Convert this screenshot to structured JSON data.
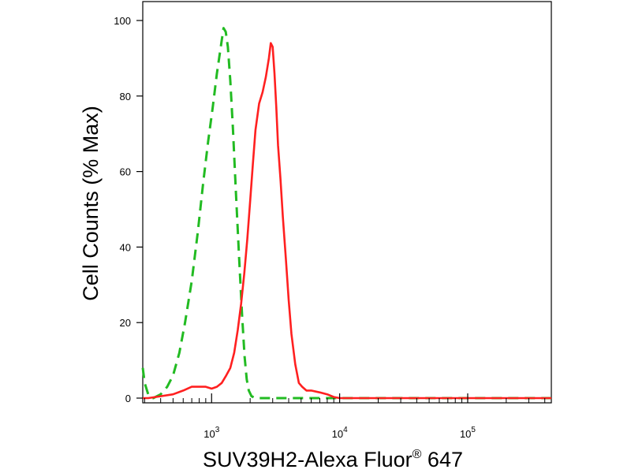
{
  "chart_data": {
    "type": "line",
    "title": "",
    "xlabel": "SUV39H2-Alexa Fluor",
    "xlabel_superscript": "®",
    "xlabel_suffix": " 647",
    "ylabel": "Cell Counts (% Max)",
    "x_scale": "log",
    "xlim": [
      290,
      450000
    ],
    "ylim": [
      0,
      100
    ],
    "grid": false,
    "legend": "none",
    "x_ticks": [
      {
        "base": "10",
        "exp": "3",
        "value": 1000
      },
      {
        "base": "10",
        "exp": "4",
        "value": 10000
      },
      {
        "base": "10",
        "exp": "5",
        "value": 100000
      }
    ],
    "y_ticks": [
      {
        "label": "0",
        "value": 0
      },
      {
        "label": "20",
        "value": 20
      },
      {
        "label": "40",
        "value": 40
      },
      {
        "label": "60",
        "value": 60
      },
      {
        "label": "80",
        "value": 80
      },
      {
        "label": "100",
        "value": 100
      }
    ],
    "series": [
      {
        "color": "#22bb22",
        "style": "dashed",
        "x": [
          290,
          300,
          320,
          350,
          400,
          450,
          500,
          560,
          620,
          700,
          780,
          860,
          940,
          1020,
          1100,
          1180,
          1240,
          1290,
          1340,
          1400,
          1470,
          1550,
          1640,
          1730,
          1810,
          1880,
          1950,
          2050,
          2200,
          2500,
          3000,
          4000,
          6000,
          8000,
          10000,
          20000,
          50000,
          100000,
          450000
        ],
        "y": [
          8,
          4,
          1,
          0,
          1,
          3,
          6,
          12,
          20,
          31,
          44,
          57,
          68,
          77,
          86,
          93,
          98,
          97,
          93,
          84,
          71,
          54,
          37,
          22,
          11,
          5,
          2,
          0.5,
          0,
          0,
          0,
          0,
          0,
          0,
          0,
          0,
          0,
          0,
          0
        ]
      },
      {
        "color": "#ff2020",
        "style": "solid",
        "x": [
          290,
          320,
          400,
          500,
          600,
          700,
          800,
          900,
          1000,
          1100,
          1200,
          1300,
          1400,
          1500,
          1600,
          1700,
          1800,
          1900,
          2000,
          2100,
          2200,
          2350,
          2500,
          2650,
          2800,
          2900,
          3000,
          3100,
          3200,
          3300,
          3450,
          3600,
          3800,
          4000,
          4200,
          4500,
          4800,
          5100,
          5500,
          6000,
          7000,
          8000,
          9000,
          10000,
          15000,
          30000,
          100000,
          450000
        ],
        "y": [
          0,
          0,
          0.5,
          1,
          2,
          3,
          3,
          3,
          2.5,
          3,
          4,
          6,
          8,
          12,
          18,
          25,
          33,
          42,
          52,
          62,
          71,
          78,
          81,
          85,
          90,
          94,
          93,
          86,
          77,
          67,
          58,
          48,
          37,
          26,
          17,
          9,
          4,
          3,
          2,
          2,
          1.5,
          1,
          0.3,
          0,
          0,
          0,
          0,
          0
        ]
      }
    ]
  }
}
